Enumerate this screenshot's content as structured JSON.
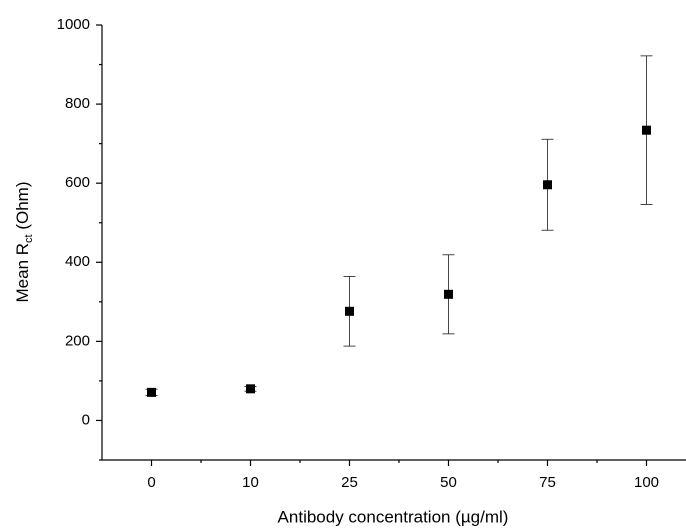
{
  "chart_data": {
    "type": "scatter",
    "xlabel": "Antibody concentration (µg/ml)",
    "ylabel": [
      "Mean R",
      "ct",
      " (Ohm)"
    ],
    "categories": [
      "0",
      "10",
      "25",
      "50",
      "75",
      "100"
    ],
    "values": [
      71,
      80,
      276,
      319,
      596,
      734
    ],
    "errors": [
      8,
      6,
      88,
      100,
      115,
      188
    ],
    "color": "#000000",
    "ylim": [
      -100,
      1000
    ],
    "yticks": [
      0,
      200,
      400,
      600,
      800,
      1000
    ],
    "yminorticks": [
      -100,
      100,
      300,
      500,
      700,
      900
    ],
    "grid": false
  }
}
